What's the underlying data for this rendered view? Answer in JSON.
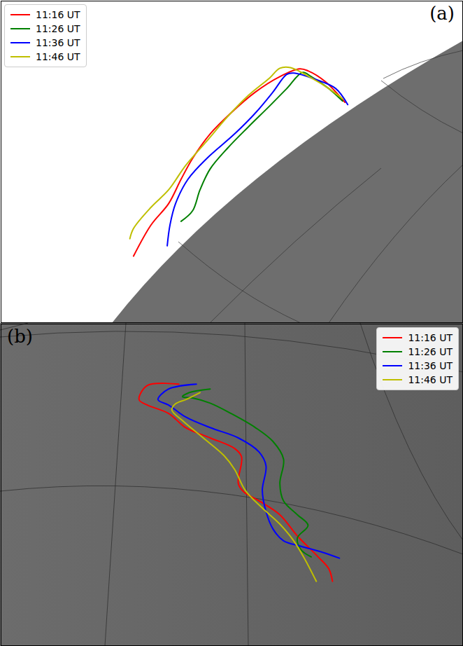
{
  "chart_data": [
    {
      "type": "line",
      "title": "(a)",
      "xlim": [
        0,
        100
      ],
      "ylim": [
        0,
        100
      ],
      "tick_labels": false,
      "legend": "upper left",
      "series": [
        {
          "name": "11:16 UT",
          "color": "#ff0000",
          "x": [
            28.7,
            32.5,
            36.3,
            39.0,
            41.5,
            45.3,
            49.8,
            55.1,
            60.4,
            64.7,
            66.5,
            70.2,
            74.5
          ],
          "values": [
            20.7,
            30.4,
            37.0,
            44.6,
            51.1,
            58.7,
            65.2,
            71.7,
            76.5,
            78.9,
            78.3,
            75.0,
            68.5
          ]
        },
        {
          "name": "11:26 UT",
          "color": "#008000",
          "x": [
            39.0,
            41.5,
            43.1,
            45.3,
            49.1,
            53.6,
            58.2,
            61.9,
            65.3,
            67.2,
            71.0,
            74.0
          ],
          "values": [
            31.5,
            34.8,
            41.3,
            47.8,
            54.3,
            60.9,
            67.4,
            72.8,
            77.8,
            76.5,
            72.8,
            68.9
          ]
        },
        {
          "name": "11:36 UT",
          "color": "#0000ff",
          "x": [
            36.0,
            36.6,
            37.8,
            40.5,
            44.6,
            50.6,
            55.1,
            58.9,
            61.9,
            63.4,
            68.0,
            72.5,
            75.1
          ],
          "values": [
            23.9,
            30.4,
            37.0,
            44.6,
            51.1,
            58.7,
            65.2,
            71.7,
            77.2,
            77.6,
            75.7,
            72.8,
            67.8
          ]
        },
        {
          "name": "11:46 UT",
          "color": "#bfbf00",
          "x": [
            27.9,
            28.7,
            32.5,
            36.3,
            40.0,
            44.6,
            49.1,
            53.6,
            58.2,
            60.4,
            62.7,
            67.2,
            71.0,
            74.0
          ],
          "values": [
            26.1,
            29.3,
            35.9,
            41.3,
            48.9,
            56.5,
            64.1,
            70.7,
            76.1,
            79.1,
            79.3,
            76.1,
            72.8,
            69.6
          ]
        }
      ]
    },
    {
      "type": "line",
      "title": "(b)",
      "xlim": [
        0,
        100
      ],
      "ylim": [
        0,
        100
      ],
      "tick_labels": false,
      "legend": "upper right",
      "series": [
        {
          "name": "11:16 UT",
          "color": "#ff0000",
          "x": [
            38.5,
            31.7,
            29.9,
            31.7,
            36.3,
            40.0,
            45.3,
            50.6,
            52.1,
            51.4,
            52.6,
            55.9,
            60.4,
            64.2,
            68.7,
            71.0,
            71.8
          ],
          "values": [
            81.3,
            80.9,
            76.5,
            74.8,
            72.2,
            67.8,
            64.6,
            61.3,
            58.7,
            50.4,
            47.8,
            45.0,
            40.7,
            34.1,
            27.6,
            23.9,
            20.0
          ]
        },
        {
          "name": "11:26 UT",
          "color": "#008000",
          "x": [
            45.3,
            40.8,
            39.3,
            41.5,
            45.3,
            49.8,
            55.1,
            58.9,
            61.2,
            60.4,
            61.2,
            64.2,
            66.5,
            64.2,
            65.0,
            67.2
          ],
          "values": [
            79.8,
            78.7,
            77.4,
            77.0,
            75.4,
            72.2,
            67.8,
            63.5,
            58.0,
            50.4,
            45.0,
            40.7,
            37.4,
            33.5,
            29.8,
            27.6
          ]
        },
        {
          "name": "11:36 UT",
          "color": "#0000ff",
          "x": [
            42.3,
            36.3,
            34.0,
            36.3,
            40.0,
            45.3,
            51.4,
            55.9,
            57.4,
            56.6,
            57.4,
            58.9,
            61.2,
            65.0,
            69.5,
            73.3
          ],
          "values": [
            81.3,
            79.8,
            76.5,
            74.8,
            71.1,
            67.8,
            64.6,
            60.2,
            55.9,
            48.3,
            41.7,
            36.3,
            32.6,
            30.9,
            29.1,
            27.2
          ]
        },
        {
          "name": "11:46 UT",
          "color": "#bfbf00",
          "x": [
            43.1,
            40.0,
            37.8,
            37.0,
            39.3,
            43.8,
            48.3,
            50.6,
            52.9,
            56.6,
            60.4,
            63.4,
            65.7,
            68.3
          ],
          "values": [
            78.7,
            76.5,
            75.2,
            73.3,
            70.0,
            64.6,
            59.1,
            54.8,
            48.3,
            42.8,
            37.8,
            32.6,
            27.2,
            20.0
          ]
        }
      ]
    }
  ]
}
